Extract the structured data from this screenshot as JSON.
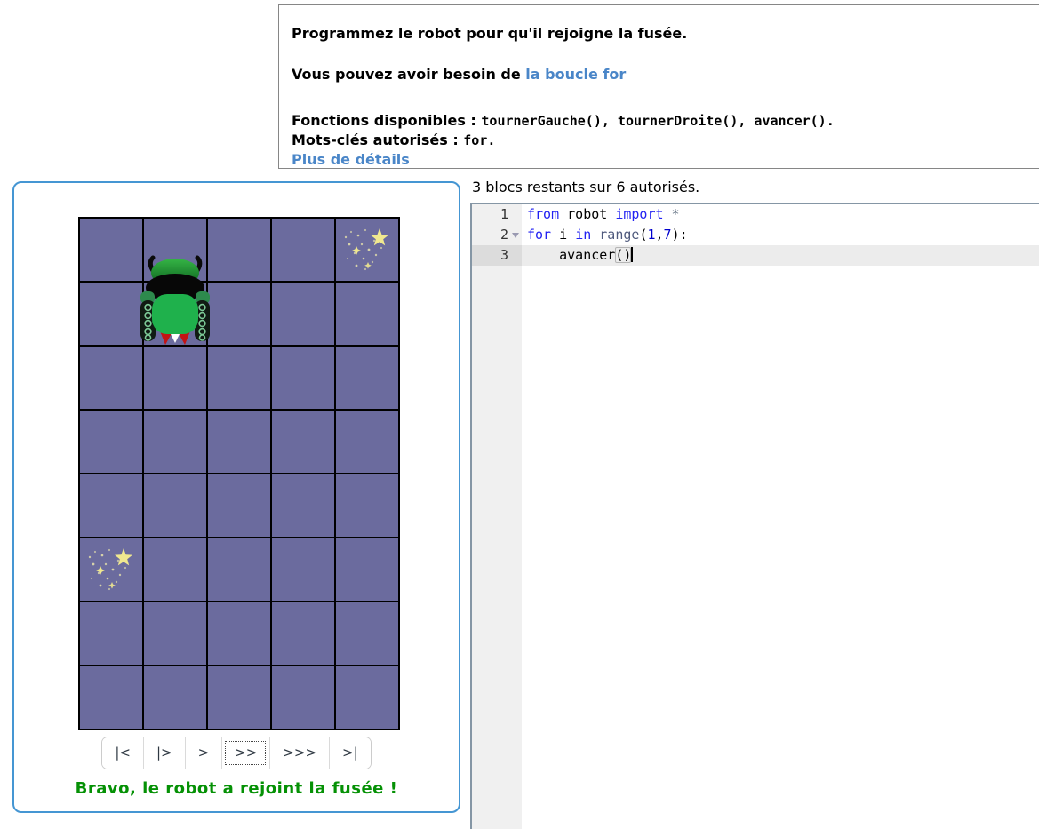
{
  "instructions": {
    "title": "Programmez le robot pour qu'il rejoigne la fusée.",
    "hint_prefix": "Vous pouvez avoir besoin de ",
    "hint_link": "la boucle for",
    "functions_label": "Fonctions disponibles : ",
    "functions_code": "tournerGauche(), tournerDroite(), avancer().",
    "keywords_label": "Mots-clés autorisés : ",
    "keywords_code": "for.",
    "details_link": "Plus de détails"
  },
  "task": {
    "grid": {
      "cols": 5,
      "rows": 8
    },
    "robot": {
      "col": 2,
      "row": 2,
      "facing": "up"
    },
    "rockets": [
      {
        "col": 5,
        "row": 1
      },
      {
        "col": 1,
        "row": 6
      }
    ],
    "controls": [
      {
        "label": "|<"
      },
      {
        "label": "|>"
      },
      {
        "label": ">"
      },
      {
        "label": ">>"
      },
      {
        "label": ">>>"
      },
      {
        "label": ">|"
      }
    ],
    "success_message": "Bravo, le robot a rejoint la fusée !"
  },
  "editor": {
    "status": "3 blocs restants sur 6 autorisés.",
    "code": {
      "line1": {
        "num": "1",
        "kw1": "from",
        "id1": " robot ",
        "kw2": "import",
        "op": " *"
      },
      "line2": {
        "num": "2",
        "kw1": "for",
        "id1": " i ",
        "kw2": "in",
        "fn": " range",
        "p1": "(",
        "n1": "1",
        "comma": ",",
        "n2": "7",
        "p2": "):"
      },
      "line3": {
        "num": "3",
        "id1": "    avancer",
        "brackets": "()"
      }
    }
  },
  "colors": {
    "panel_border": "#4596d3",
    "link": "#4a86c8",
    "grid_cell": "#6b6b9e",
    "grid_line": "#000000",
    "keyword": "#2222f2",
    "number": "#0000cd",
    "builtin": "#4f5a7d",
    "operator": "#687687",
    "success_text": "#059105",
    "active_line_bg": "#ececec",
    "gutter_bg": "#f0f0f0"
  }
}
